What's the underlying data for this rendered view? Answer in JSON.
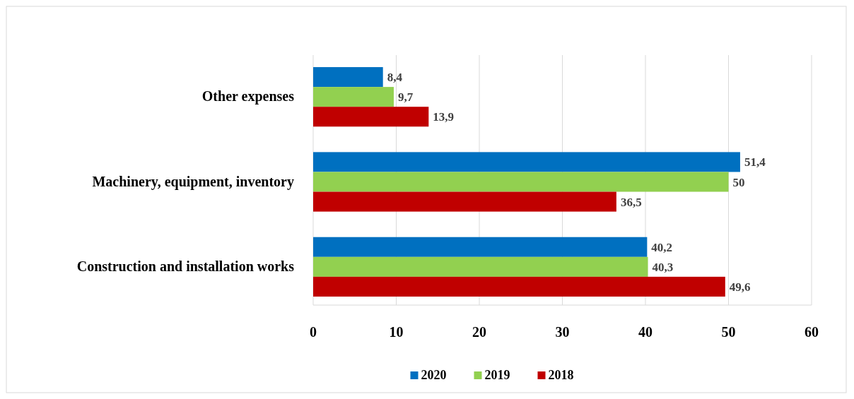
{
  "chart_data": {
    "type": "bar",
    "orientation": "horizontal",
    "categories": [
      "Other expenses",
      "Machinery, equipment, inventory",
      "Construction and installation works"
    ],
    "series": [
      {
        "name": "2020",
        "color": "#0070c0",
        "values": [
          8.4,
          51.4,
          40.2
        ],
        "value_labels": [
          "8,4",
          "51,4",
          "40,2"
        ]
      },
      {
        "name": "2019",
        "color": "#92d050",
        "values": [
          9.7,
          50,
          40.3
        ],
        "value_labels": [
          "9,7",
          "50",
          "40,3"
        ]
      },
      {
        "name": "2018",
        "color": "#c00000",
        "values": [
          13.9,
          36.5,
          49.6
        ],
        "value_labels": [
          "13,9",
          "36,5",
          "49,6"
        ]
      }
    ],
    "xlim": [
      0,
      60
    ],
    "xticks": [
      0,
      10,
      20,
      30,
      40,
      50,
      60
    ],
    "grid": "x",
    "legend": "bottom"
  }
}
